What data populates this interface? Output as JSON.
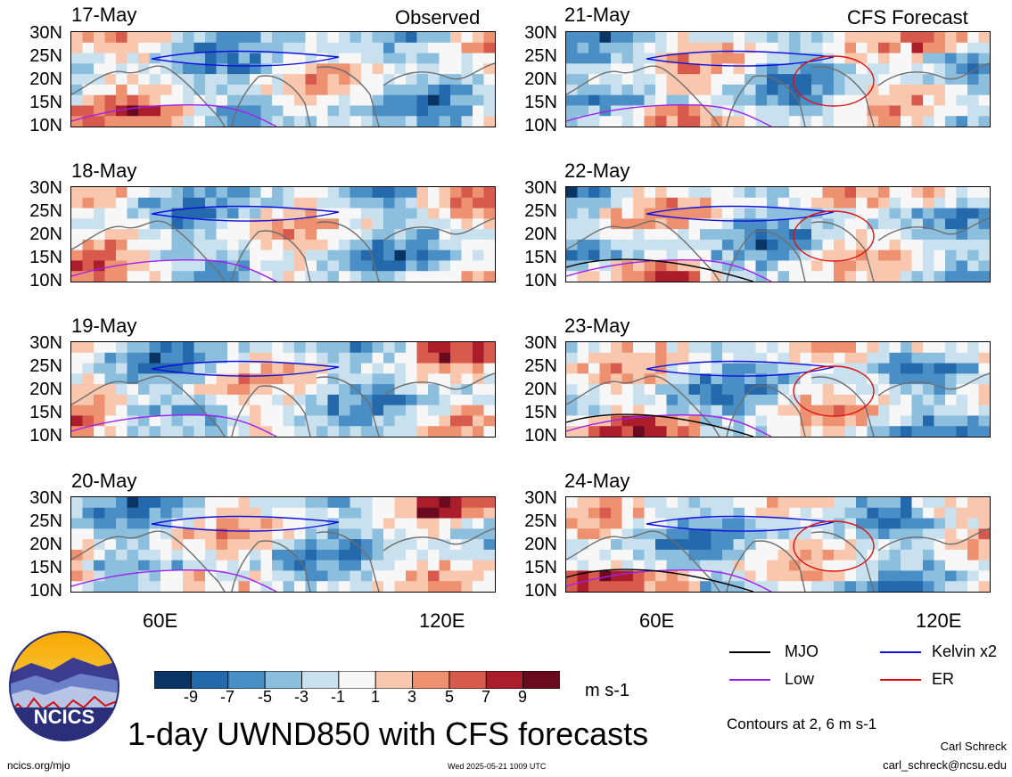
{
  "main_title": "1-day UWND850 with CFS forecasts",
  "units": "m s-1",
  "site": "ncics.org/mjo",
  "timestamp": "Wed 2025-05-21 1009 UTC",
  "author": "Carl Schreck",
  "email": "carl_schreck@ncsu.edu",
  "contours_note": "Contours at 2, 6 m s-1",
  "logo_text": "NCICS",
  "labels": {
    "observed": "Observed",
    "forecast": "CFS Forecast"
  },
  "lat_labels": [
    "30N",
    "25N",
    "20N",
    "15N",
    "10N"
  ],
  "lon_labels": [
    "60E",
    "120E"
  ],
  "legend": [
    {
      "label": "MJO",
      "color": "#000000"
    },
    {
      "label": "Kelvin x2",
      "color": "#1010e0"
    },
    {
      "label": "Low",
      "color": "#a020f0"
    },
    {
      "label": "ER",
      "color": "#e01010"
    }
  ],
  "chart_data": {
    "type": "heatmap",
    "variable": "UWND850",
    "lat_range": [
      10,
      30
    ],
    "lon_range": [
      40,
      130
    ],
    "colorbar": {
      "ticks": [
        "-9",
        "-7",
        "-5",
        "-3",
        "-1",
        "1",
        "3",
        "5",
        "7",
        "9"
      ],
      "colors": [
        "#0a3463",
        "#2369ac",
        "#4a8ec6",
        "#8cbfde",
        "#c9e1ef",
        "#f7f7f7",
        "#f8c7ad",
        "#ee9170",
        "#d75a4c",
        "#ab1d2a",
        "#6a0a1f"
      ]
    },
    "panels": [
      {
        "date": "17-May",
        "source": "observed"
      },
      {
        "date": "18-May",
        "source": "observed"
      },
      {
        "date": "19-May",
        "source": "observed"
      },
      {
        "date": "20-May",
        "source": "observed"
      },
      {
        "date": "21-May",
        "source": "forecast"
      },
      {
        "date": "22-May",
        "source": "forecast"
      },
      {
        "date": "23-May",
        "source": "forecast"
      },
      {
        "date": "24-May",
        "source": "forecast"
      }
    ]
  }
}
